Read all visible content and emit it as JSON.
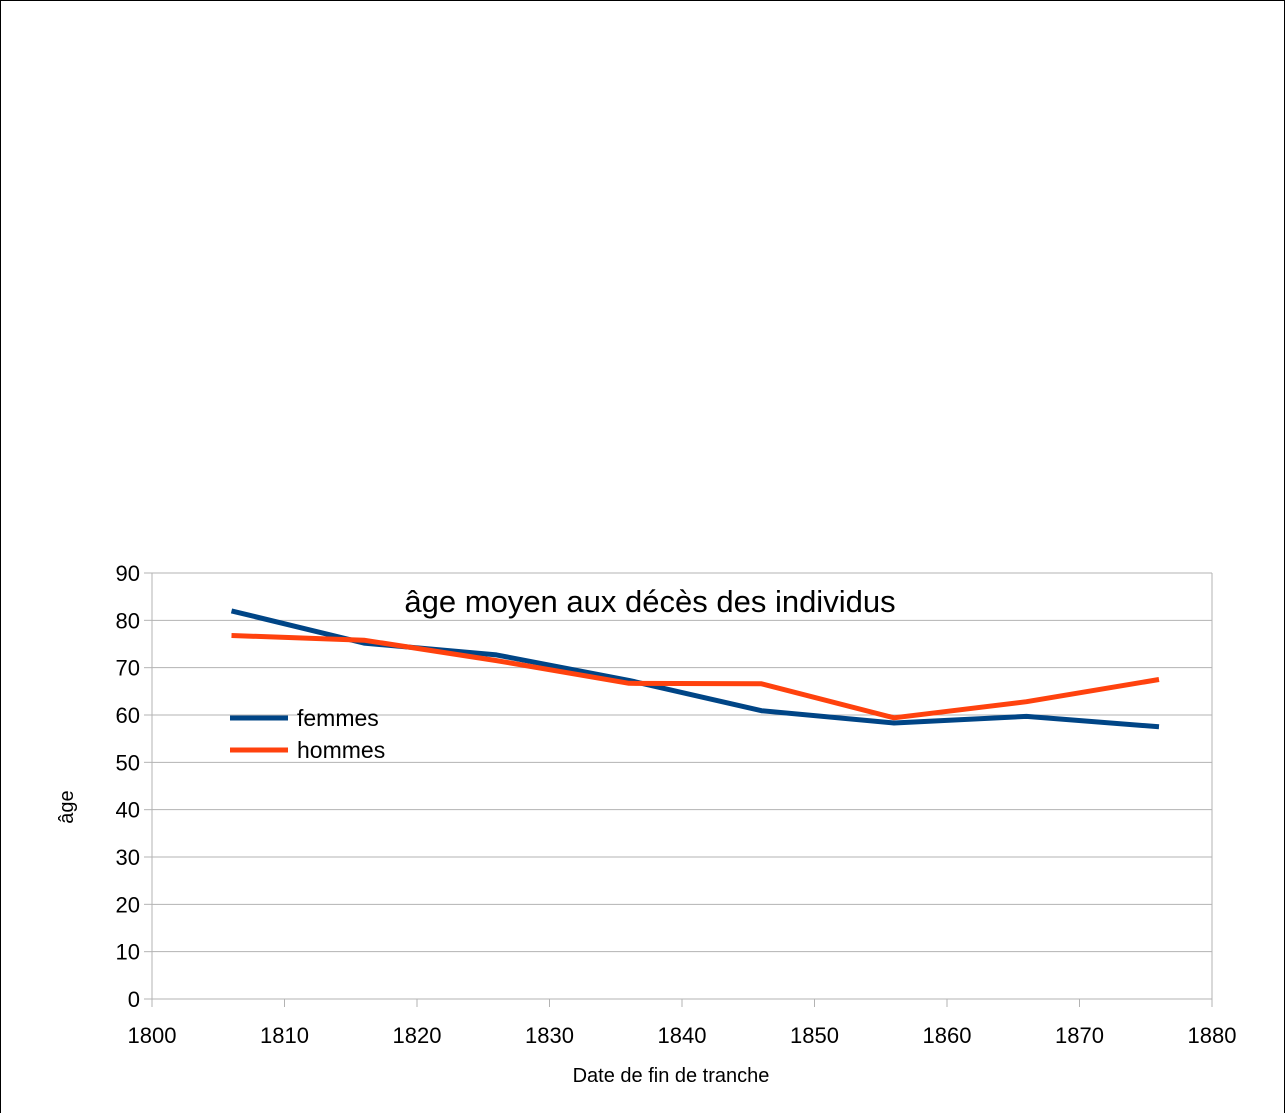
{
  "chart_data": {
    "type": "line",
    "title": "âge moyen aux décès des individus",
    "xlabel": "Date de fin de tranche",
    "ylabel": "âge",
    "xlim": [
      1800,
      1880
    ],
    "ylim": [
      0,
      90
    ],
    "x_ticks": [
      1800,
      1810,
      1820,
      1830,
      1840,
      1850,
      1860,
      1870,
      1880
    ],
    "y_ticks": [
      0,
      10,
      20,
      30,
      40,
      50,
      60,
      70,
      80,
      90
    ],
    "grid": "horizontal",
    "legend_position": "left",
    "x": [
      1806,
      1816,
      1826,
      1836,
      1846,
      1856,
      1866,
      1876
    ],
    "series": [
      {
        "name": "femmes",
        "color": "#004586",
        "values": [
          82,
          75.2,
          72.7,
          67.3,
          60.9,
          58.3,
          59.7,
          57.5
        ]
      },
      {
        "name": "hommes",
        "color": "#ff420e",
        "values": [
          76.8,
          75.8,
          71.5,
          66.7,
          66.6,
          59.4,
          62.8,
          67.5
        ]
      }
    ]
  }
}
